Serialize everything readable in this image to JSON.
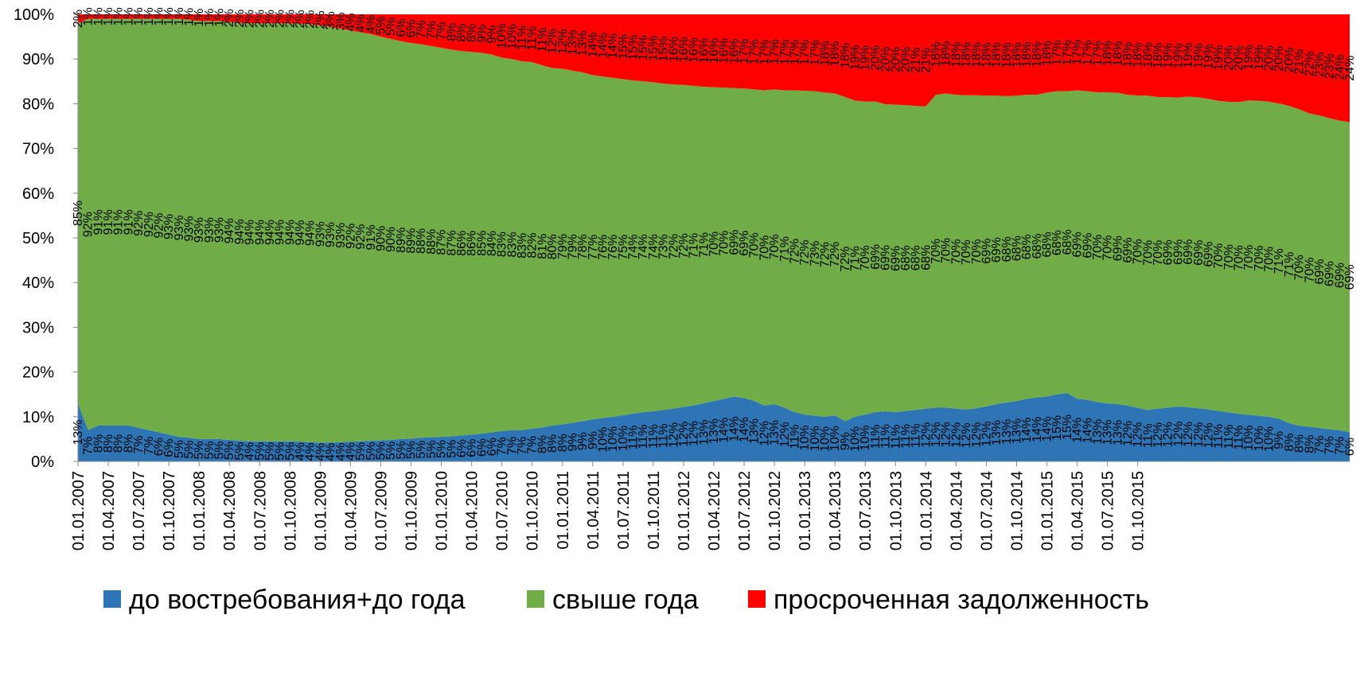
{
  "chart_data": {
    "type": "area",
    "stacked": true,
    "percent": true,
    "title": "",
    "xlabel": "",
    "ylabel": "",
    "ylim": [
      0,
      100
    ],
    "yticks": [
      "0%",
      "10%",
      "20%",
      "30%",
      "40%",
      "50%",
      "60%",
      "70%",
      "80%",
      "90%",
      "100%"
    ],
    "legend_position": "bottom",
    "grid": false,
    "x_start": "01.01.2007",
    "x_tick_labels": [
      "01.01.2007",
      "01.04.2007",
      "01.07.2007",
      "01.10.2007",
      "01.01.2008",
      "01.04.2008",
      "01.07.2008",
      "01.10.2008",
      "01.01.2009",
      "01.04.2009",
      "01.07.2009",
      "01.10.2009",
      "01.01.2010",
      "01.04.2010",
      "01.07.2010",
      "01.10.2010",
      "01.01.2011",
      "01.04.2011",
      "01.07.2011",
      "01.10.2011",
      "01.01.2012",
      "01.04.2012",
      "01.07.2012",
      "01.10.2012",
      "01.01.2013",
      "01.04.2013",
      "01.07.2013",
      "01.10.2013",
      "01.01.2014",
      "01.04.2014",
      "01.07.2014",
      "01.10.2014",
      "01.01.2015",
      "01.04.2015",
      "01.07.2015",
      "01.10.2015"
    ],
    "series": [
      {
        "name": "до востребования+до года",
        "color": "#2E75B6",
        "values": [
          13,
          7,
          8,
          8,
          8,
          8,
          7.5,
          7,
          6.5,
          6,
          5.5,
          5.3,
          5,
          5,
          5,
          4.8,
          4.6,
          4.5,
          4.5,
          4.5,
          4.5,
          4.5,
          4.4,
          4.3,
          4.2,
          4.2,
          4.3,
          4.4,
          4.5,
          4.6,
          4.7,
          4.8,
          5,
          5.1,
          5.3,
          5.4,
          5.5,
          5.6,
          5.8,
          6,
          6.2,
          6.5,
          6.8,
          7,
          7,
          7.3,
          7.6,
          8,
          8.3,
          8.6,
          9,
          9.4,
          9.7,
          10,
          10.3,
          10.7,
          11,
          11.2,
          11.5,
          11.8,
          12.2,
          12.5,
          13,
          13.5,
          14,
          14.5,
          14.2,
          13.5,
          12.5,
          12.8,
          12,
          11,
          10.5,
          10.2,
          10,
          10.3,
          9,
          10,
          10.5,
          11,
          11.2,
          11,
          11.3,
          11.5,
          11.8,
          12,
          12,
          11.8,
          11.6,
          11.9,
          12.3,
          12.8,
          13.2,
          13.5,
          14,
          14.3,
          14.5,
          15,
          15.3,
          14,
          13.8,
          13.3,
          13,
          12.8,
          12.5,
          12,
          11.5,
          11.8,
          12,
          12.2,
          12,
          11.8,
          11.6,
          11.3,
          11,
          10.7,
          10.4,
          10.2,
          10,
          9.5,
          8.5,
          8,
          7.8,
          7.5,
          7.2,
          7,
          6.5
        ]
      },
      {
        "name": "свыше года",
        "color": "#70AD47",
        "values": [
          85,
          92,
          91,
          91,
          91,
          91,
          91.5,
          92,
          92.5,
          93,
          93.5,
          93.5,
          93.5,
          93.5,
          93.5,
          93.5,
          93.5,
          93.5,
          93.5,
          93.5,
          93.5,
          93.5,
          93.5,
          93.5,
          93.3,
          93,
          92.5,
          92,
          91.5,
          91,
          90.3,
          89.7,
          89,
          88.5,
          88,
          87.5,
          87,
          86.5,
          86,
          85.6,
          85.2,
          84.5,
          83.5,
          83,
          82.5,
          82,
          81,
          80,
          79.5,
          78.8,
          78,
          77,
          76.4,
          75.8,
          75.2,
          74.5,
          74,
          73.6,
          73,
          72.5,
          72,
          71.5,
          70.8,
          70.2,
          69.6,
          69,
          69.2,
          69.7,
          70.5,
          70.4,
          71,
          72,
          72.4,
          72.6,
          72.5,
          72,
          72.5,
          70.7,
          70,
          69.5,
          68.7,
          68.8,
          68.4,
          68,
          67.6,
          70,
          70.3,
          70.2,
          70.3,
          70,
          69.5,
          69,
          68.5,
          68.3,
          68,
          67.7,
          68,
          67.8,
          67.5,
          69,
          69,
          69.5,
          69.7,
          69.5,
          69.5,
          70,
          70.3,
          69.7,
          69.2,
          68.7,
          68.8,
          69,
          69.4,
          69.5,
          69.5,
          70,
          70.1,
          70.4,
          70.6,
          70.5,
          70.7,
          71,
          70.5,
          70.2,
          69.7,
          69.3,
          69,
          69
        ]
      },
      {
        "name": "просроченная задолженность",
        "color": "#FF0000",
        "values": [
          2,
          1,
          1,
          1,
          1,
          1,
          1,
          1,
          1,
          1,
          1,
          1.2,
          1.5,
          1.5,
          1.5,
          1.7,
          1.9,
          2,
          2,
          2,
          2,
          2,
          2.1,
          2.2,
          2.5,
          2.8,
          3.2,
          3.6,
          4,
          4.4,
          5,
          5.5,
          6,
          6.4,
          6.7,
          7.1,
          7.5,
          7.9,
          8.2,
          8.4,
          8.6,
          9,
          9.7,
          10,
          10.5,
          10.7,
          11.4,
          12,
          12.2,
          12.6,
          13,
          13.6,
          13.9,
          14.2,
          14.5,
          14.8,
          15,
          15.2,
          15.5,
          15.7,
          15.8,
          16,
          16.2,
          16.3,
          16.4,
          16.5,
          16.6,
          16.8,
          17,
          16.8,
          17,
          17,
          17.1,
          17.2,
          17.5,
          17.7,
          18.5,
          19.3,
          19.5,
          19.5,
          20.1,
          20.2,
          20.3,
          20.5,
          20.6,
          18,
          17.7,
          18,
          18.1,
          18.1,
          18.2,
          18.2,
          18.3,
          18.2,
          18,
          18,
          17.5,
          17.2,
          17.2,
          17,
          17.2,
          17.5,
          17.5,
          17.5,
          18,
          18.2,
          18.2,
          18.5,
          18.5,
          18.5,
          18.2,
          18.4,
          18.9,
          19.4,
          19.6,
          19.7,
          19.2,
          19.3,
          19.6,
          19.9,
          20.4,
          21.3,
          22.3,
          22.7,
          23.3,
          23.8,
          24,
          24.5
        ]
      }
    ],
    "data_labels": {
      "blue": [
        "13%",
        "7%",
        "8%",
        "8%",
        "8%",
        "8%",
        "7%",
        "7%",
        "6%",
        "6%",
        "5%",
        "5%",
        "5%",
        "5%",
        "5%",
        "5%",
        "5%",
        "4%",
        "5%",
        "5%",
        "5%",
        "5%",
        "4%",
        "4%",
        "4%",
        "4%",
        "4%",
        "4%",
        "5%",
        "5%",
        "5%",
        "5%",
        "5%",
        "5%",
        "5%",
        "5%",
        "5%",
        "5%",
        "6%",
        "6%",
        "6%",
        "6%",
        "7%",
        "7%",
        "7%",
        "7%",
        "8%",
        "8%",
        "8%",
        "9%",
        "9%",
        "9%",
        "10%",
        "10%",
        "10%",
        "11%",
        "11%",
        "11%",
        "11%",
        "12%",
        "12%",
        "12%",
        "13%",
        "13%",
        "14%",
        "14%",
        "14%",
        "13%",
        "12%",
        "13%",
        "12%",
        "11%",
        "10%",
        "10%",
        "10%",
        "10%",
        "9%",
        "10%",
        "10%",
        "11%",
        "11%",
        "11%",
        "11%",
        "11%",
        "12%",
        "12%",
        "12%",
        "12%",
        "12%",
        "12%",
        "12%",
        "13%",
        "13%",
        "13%",
        "14%",
        "14%",
        "14%",
        "15%",
        "15%",
        "14%",
        "14%",
        "13%",
        "13%",
        "13%",
        "12%",
        "12%",
        "11%",
        "12%",
        "12%",
        "12%",
        "12%",
        "12%",
        "12%",
        "11%",
        "11%",
        "11%",
        "10%",
        "10%",
        "10%",
        "9%",
        "8%",
        "8%",
        "8%",
        "7%",
        "7%",
        "7%",
        "6%"
      ],
      "green": [
        "85%",
        "92%",
        "91%",
        "91%",
        "91%",
        "91%",
        "92%",
        "92%",
        "92%",
        "93%",
        "93%",
        "93%",
        "93%",
        "93%",
        "93%",
        "94%",
        "94%",
        "94%",
        "94%",
        "94%",
        "94%",
        "94%",
        "94%",
        "94%",
        "93%",
        "93%",
        "93%",
        "92%",
        "92%",
        "91%",
        "90%",
        "90%",
        "89%",
        "89%",
        "88%",
        "88%",
        "87%",
        "87%",
        "86%",
        "86%",
        "85%",
        "84%",
        "83%",
        "83%",
        "83%",
        "82%",
        "81%",
        "80%",
        "79%",
        "79%",
        "78%",
        "77%",
        "76%",
        "76%",
        "75%",
        "74%",
        "74%",
        "74%",
        "73%",
        "72%",
        "72%",
        "71%",
        "71%",
        "70%",
        "70%",
        "69%",
        "69%",
        "70%",
        "70%",
        "70%",
        "71%",
        "72%",
        "72%",
        "73%",
        "72%",
        "72%",
        "72%",
        "71%",
        "70%",
        "69%",
        "69%",
        "69%",
        "68%",
        "68%",
        "68%",
        "70%",
        "70%",
        "70%",
        "70%",
        "70%",
        "69%",
        "69%",
        "68%",
        "68%",
        "68%",
        "68%",
        "68%",
        "68%",
        "68%",
        "69%",
        "69%",
        "70%",
        "70%",
        "69%",
        "69%",
        "70%",
        "70%",
        "70%",
        "69%",
        "69%",
        "69%",
        "69%",
        "69%",
        "70%",
        "70%",
        "70%",
        "70%",
        "70%",
        "70%",
        "71%",
        "71%",
        "70%",
        "70%",
        "69%",
        "69%",
        "69%",
        "69%"
      ],
      "red": [
        "2%",
        "1%",
        "1%",
        "1%",
        "1%",
        "1%",
        "1%",
        "1%",
        "1%",
        "1%",
        "1%",
        "1%",
        "1%",
        "1%",
        "1%",
        "2%",
        "2%",
        "2%",
        "2%",
        "2%",
        "2%",
        "2%",
        "2%",
        "2%",
        "2%",
        "3%",
        "3%",
        "4%",
        "4%",
        "4%",
        "5%",
        "5%",
        "6%",
        "6%",
        "7%",
        "7%",
        "7%",
        "8%",
        "8%",
        "8%",
        "9%",
        "9%",
        "10%",
        "10%",
        "11%",
        "11%",
        "11%",
        "12%",
        "12%",
        "13%",
        "13%",
        "14%",
        "14%",
        "14%",
        "15%",
        "15%",
        "15%",
        "15%",
        "15%",
        "16%",
        "16%",
        "16%",
        "16%",
        "16%",
        "16%",
        "16%",
        "17%",
        "17%",
        "17%",
        "17%",
        "17%",
        "17%",
        "17%",
        "17%",
        "18%",
        "18%",
        "18%",
        "19%",
        "19%",
        "20%",
        "20%",
        "20%",
        "20%",
        "21%",
        "21%",
        "18%",
        "18%",
        "18%",
        "18%",
        "18%",
        "18%",
        "18%",
        "18%",
        "18%",
        "18%",
        "18%",
        "18%",
        "17%",
        "17%",
        "17%",
        "17%",
        "17%",
        "18%",
        "18%",
        "18%",
        "18%",
        "18%",
        "18%",
        "19%",
        "19%",
        "19%",
        "19%",
        "19%",
        "19%",
        "20%",
        "20%",
        "19%",
        "19%",
        "20%",
        "20%",
        "20%",
        "21%",
        "22%",
        "23%",
        "23%",
        "24%",
        "24%"
      ]
    }
  }
}
